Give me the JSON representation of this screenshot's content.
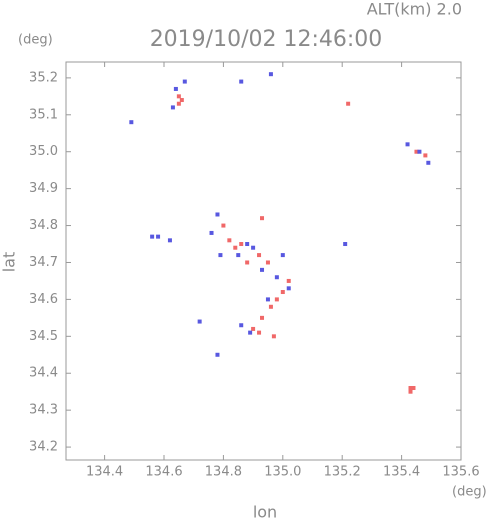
{
  "chart_data": {
    "type": "scatter",
    "title": "2019/10/02 12:46:00",
    "annotation": "ALT(km)  2.0",
    "y_unit": "(deg)",
    "x_unit": "(deg)",
    "xlabel": "lon",
    "ylabel": "lat",
    "xlim": [
      134.27,
      135.6
    ],
    "ylim": [
      34.165,
      35.243
    ],
    "xticks": [
      134.4,
      134.6,
      134.8,
      {
        "value": 135,
        "label": "135.0"
      },
      135.2,
      135.4,
      135.6
    ],
    "yticks": [
      34.2,
      34.3,
      34.4,
      34.5,
      34.6,
      34.7,
      34.8,
      34.9,
      {
        "value": 35,
        "label": "35.0"
      },
      35.1,
      35.2
    ],
    "series": [
      {
        "color": "#f06868",
        "x": [
          134.65,
          134.66,
          134.65,
          135.43,
          135.44,
          135.43,
          134.82,
          134.84,
          134.86,
          134.8,
          134.92,
          134.95,
          135.0,
          134.98,
          134.96,
          134.93,
          134.9,
          134.92,
          135.02,
          134.93,
          135.45,
          135.48,
          135.22,
          134.97,
          134.88
        ],
        "y": [
          35.15,
          35.14,
          35.13,
          34.35,
          34.36,
          34.36,
          34.76,
          34.74,
          34.75,
          34.8,
          34.72,
          34.7,
          34.62,
          34.6,
          34.58,
          34.55,
          34.52,
          34.51,
          34.65,
          34.82,
          35.0,
          34.99,
          35.13,
          34.5,
          34.7
        ]
      },
      {
        "color": "#5858e0",
        "x": [
          134.64,
          134.67,
          134.63,
          134.56,
          134.58,
          134.62,
          134.76,
          134.78,
          134.79,
          134.85,
          134.88,
          134.9,
          134.93,
          135.0,
          134.98,
          135.02,
          134.95,
          134.89,
          134.86,
          134.78,
          135.42,
          135.46,
          135.49,
          134.49,
          134.96,
          134.86,
          135.21,
          134.72
        ],
        "y": [
          35.17,
          35.19,
          35.12,
          34.77,
          34.77,
          34.76,
          34.78,
          34.83,
          34.72,
          34.72,
          34.75,
          34.74,
          34.68,
          34.72,
          34.66,
          34.63,
          34.6,
          34.51,
          34.53,
          34.45,
          35.02,
          35.0,
          34.97,
          35.08,
          35.21,
          35.19,
          34.75,
          34.54
        ]
      }
    ]
  }
}
